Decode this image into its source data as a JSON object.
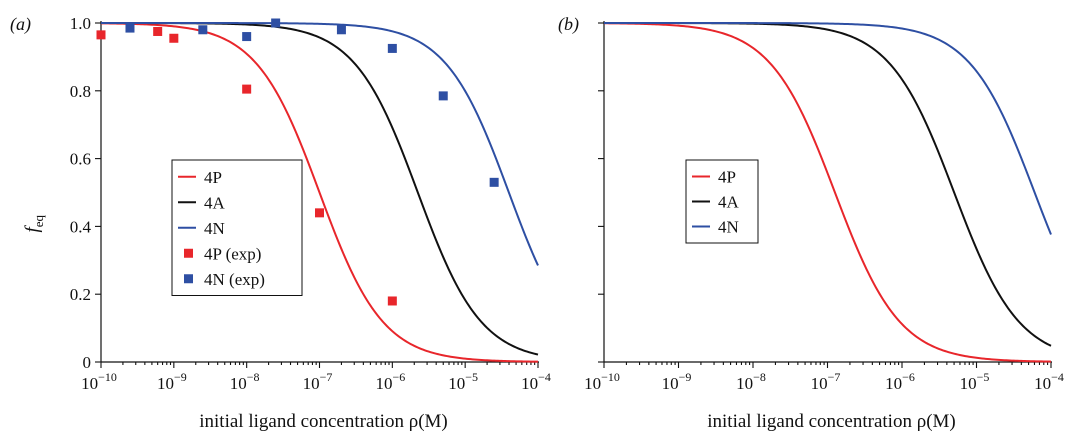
{
  "chart_data": [
    {
      "type": "line",
      "panel_label_letter": "a",
      "x_scale": "log",
      "xlim": [
        1e-10,
        0.0001
      ],
      "ylim": [
        0,
        1
      ],
      "xticks": [
        -10,
        -9,
        -8,
        -7,
        -6,
        -5,
        -4
      ],
      "yticks": [
        "0",
        "0.2",
        "0.4",
        "0.6",
        "0.8",
        "1.0"
      ],
      "xlabel": "initial ligand concentration ρ(M)",
      "ylabel_main": "f",
      "ylabel_sub": "eq",
      "legend_position": "center-left",
      "series": [
        {
          "name": "4P",
          "kind": "line",
          "color": "#e8262b",
          "midpoint_log10": -7.0,
          "slope": 1.0
        },
        {
          "name": "4A",
          "kind": "line",
          "color": "#111111",
          "midpoint_log10": -5.65,
          "slope": 1.0
        },
        {
          "name": "4N",
          "kind": "line",
          "color": "#2e4fa3",
          "midpoint_log10": -4.4,
          "slope": 1.0
        },
        {
          "name": "4P (exp)",
          "kind": "scatter",
          "color": "#e8262b",
          "x": [
            1e-10,
            6e-10,
            1e-09,
            1e-08,
            1e-07,
            1e-06
          ],
          "y": [
            0.965,
            0.975,
            0.955,
            0.805,
            0.44,
            0.18
          ]
        },
        {
          "name": "4N (exp)",
          "kind": "scatter",
          "color": "#2e4fa3",
          "x": [
            2.5e-10,
            2.5e-09,
            1e-08,
            2.5e-08,
            2e-07,
            1e-06,
            5e-06,
            2.5e-05
          ],
          "y": [
            0.985,
            0.98,
            0.96,
            1.0,
            0.98,
            0.925,
            0.785,
            0.53
          ]
        }
      ]
    },
    {
      "type": "line",
      "panel_label_letter": "b",
      "x_scale": "log",
      "xlim": [
        1e-10,
        0.0001
      ],
      "ylim": [
        0,
        1
      ],
      "xticks": [
        -10,
        -9,
        -8,
        -7,
        -6,
        -5,
        -4
      ],
      "xlabel": "initial ligand concentration ρ(M)",
      "legend_position": "center-left",
      "series": [
        {
          "name": "4P",
          "kind": "line",
          "color": "#e8262b",
          "midpoint_log10": -6.9,
          "slope": 1.0
        },
        {
          "name": "4A",
          "kind": "line",
          "color": "#111111",
          "midpoint_log10": -5.3,
          "slope": 1.0
        },
        {
          "name": "4N",
          "kind": "line",
          "color": "#2e4fa3",
          "midpoint_log10": -4.22,
          "slope": 1.0
        }
      ]
    }
  ]
}
